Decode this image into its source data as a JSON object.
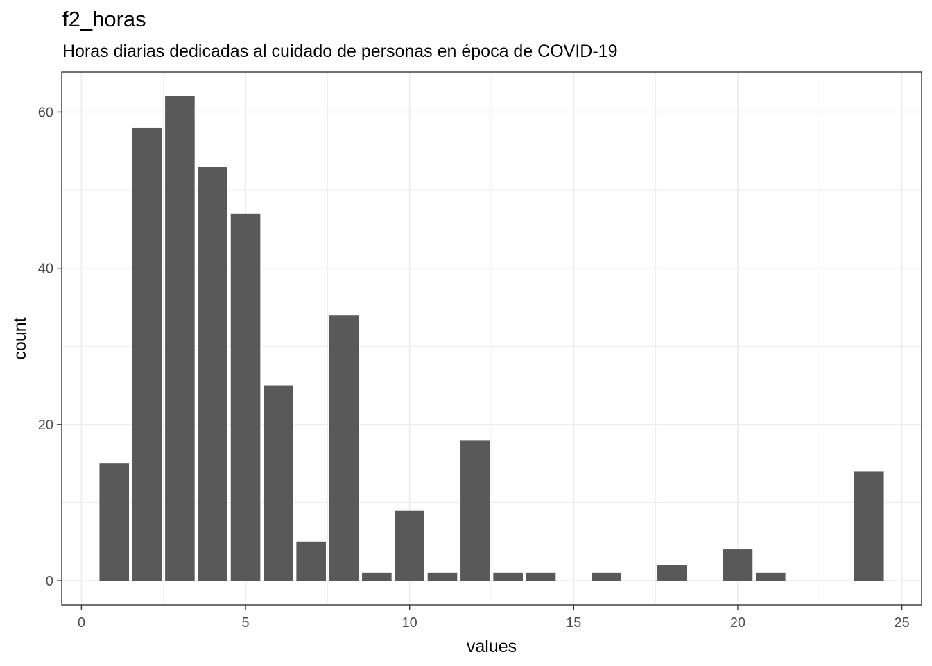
{
  "chart_data": {
    "type": "bar",
    "title": "f2_horas",
    "subtitle": "Horas diarias dedicadas al cuidado de personas en época de COVID-19",
    "xlabel": "values",
    "ylabel": "count",
    "x": [
      1,
      2,
      3,
      4,
      5,
      6,
      7,
      8,
      9,
      10,
      11,
      12,
      13,
      14,
      16,
      18,
      20,
      21,
      24
    ],
    "values": [
      15,
      58,
      62,
      53,
      47,
      25,
      5,
      34,
      1,
      9,
      1,
      18,
      1,
      1,
      1,
      2,
      4,
      1,
      14
    ],
    "xlim": [
      -0.6,
      25.6
    ],
    "ylim": [
      -3.1,
      65.1
    ],
    "xticks": [
      0,
      5,
      10,
      15,
      20,
      25
    ],
    "yticks": [
      0,
      20,
      40,
      60
    ],
    "grid": true,
    "legend": "none",
    "bar_color": "#595959",
    "grid_color": "#ebebeb",
    "panel_border_color": "#333333"
  }
}
